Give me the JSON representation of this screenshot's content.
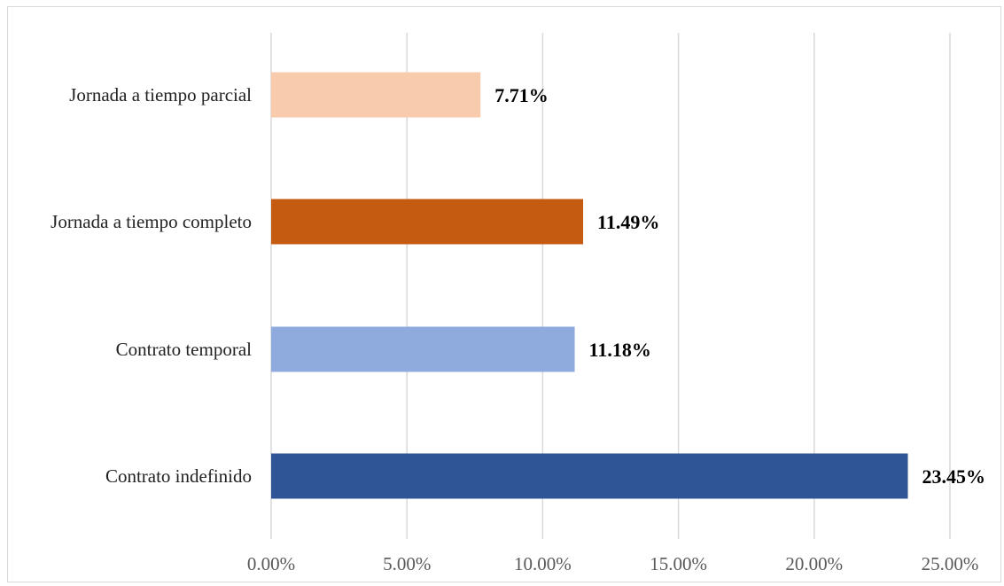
{
  "chart_data": {
    "type": "bar",
    "orientation": "horizontal",
    "categories": [
      "Jornada a tiempo parcial",
      "Jornada a tiempo completo",
      "Contrato temporal",
      "Contrato indefinido"
    ],
    "values": [
      7.71,
      11.49,
      11.18,
      23.45
    ],
    "data_labels": [
      "7.71%",
      "11.49%",
      "11.18%",
      "23.45%"
    ],
    "colors": [
      "#f8cbad",
      "#c55a11",
      "#8faadc",
      "#2f5597"
    ],
    "xlim": [
      0,
      25
    ],
    "x_ticks": [
      0,
      5,
      10,
      15,
      20,
      25
    ],
    "x_tick_labels": [
      "0.00%",
      "5.00%",
      "10.00%",
      "15.00%",
      "20.00%",
      "25.00%"
    ],
    "grid": true,
    "legend": "none",
    "title": "",
    "xlabel": "",
    "ylabel": ""
  }
}
